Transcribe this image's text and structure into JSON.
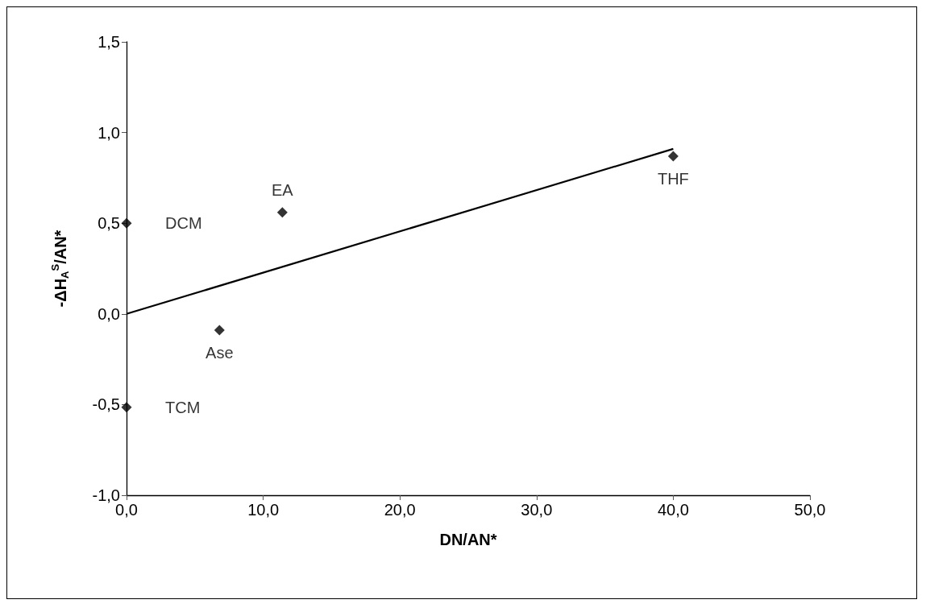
{
  "chart_data": {
    "type": "scatter",
    "xlabel": "DN/AN*",
    "ylabel": "-ΔH$_{A}$$^{S}$/AN*",
    "series": [
      {
        "color": "#000000",
        "x": [
          0,
          11.4,
          6.8,
          0,
          40.0
        ],
        "values": [
          0.5,
          0.56,
          -0.09,
          -0.515,
          0.87
        ],
        "marker": "diamond"
      },
      {
        "type": "line",
        "color": "#000000",
        "x": [
          0,
          40.0
        ],
        "values": [
          0,
          0.91
        ],
        "marker": "none",
        "line_style": "solid"
      }
    ],
    "annotations": [
      {
        "text": "DCM",
        "x": 0,
        "y": 0.5
      },
      {
        "text": "EA",
        "x": 11.4,
        "y": 0.56
      },
      {
        "text": "Ase",
        "x": 6.8,
        "y": -0.09
      },
      {
        "text": "TCM",
        "x": 0,
        "y": -0.515
      },
      {
        "text": "THF",
        "x": 40.0,
        "y": 0.87
      }
    ],
    "xlim": [
      0,
      50
    ],
    "xticks": [
      {
        "value": 0,
        "label": "0,0"
      },
      {
        "value": 10,
        "label": "10,0"
      },
      {
        "value": 20,
        "label": "20,0"
      },
      {
        "value": 30,
        "label": "30,0"
      },
      {
        "value": 40,
        "label": "40,0"
      },
      {
        "value": 50,
        "label": "50,0"
      }
    ],
    "ylim": [
      -1,
      1.5
    ],
    "yticks": [
      {
        "value": -1,
        "label": "-1,0"
      },
      {
        "value": -0.5,
        "label": "-0,5"
      },
      {
        "value": 0,
        "label": "0,0"
      },
      {
        "value": 0.5,
        "label": "0,5"
      },
      {
        "value": 1,
        "label": "1,0"
      },
      {
        "value": 1.5,
        "label": "1,5"
      }
    ],
    "grid": false
  }
}
